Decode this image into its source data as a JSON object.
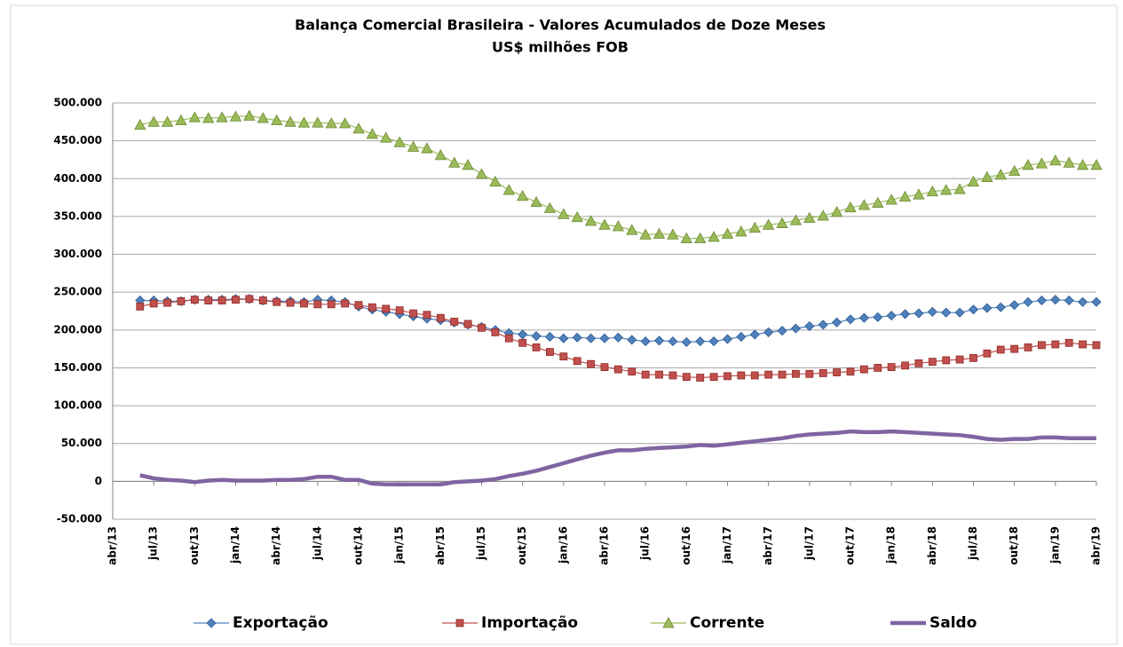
{
  "chart_data": {
    "type": "line",
    "title": "Balança Comercial Brasileira -  Valores Acumulados de Doze Meses",
    "subtitle": "US$ milhões FOB",
    "categories": [
      "abr/13",
      null,
      null,
      "jul/13",
      null,
      null,
      "out/13",
      null,
      null,
      "jan/14",
      null,
      null,
      "abr/14",
      null,
      null,
      "jul/14",
      null,
      null,
      "out/14",
      null,
      null,
      "jan/15",
      null,
      null,
      "abr/15",
      null,
      null,
      "jul/15",
      null,
      null,
      "out/15",
      null,
      null,
      "jan/16",
      null,
      null,
      "abr/16",
      null,
      null,
      "jul/16",
      null,
      null,
      "out/16",
      null,
      null,
      "jan/17",
      null,
      null,
      "abr/17",
      null,
      null,
      "jul/17",
      null,
      null,
      "out/17",
      null,
      null,
      "jan/18",
      null,
      null,
      "abr/18",
      null,
      null,
      "jul/18",
      null,
      null,
      "out/18",
      null,
      null,
      "jan/19",
      null,
      null,
      "abr/19"
    ],
    "series": [
      {
        "name": "Exportação",
        "color": "#4f81bd",
        "marker": "diamond",
        "values": [
          null,
          null,
          239000,
          239000,
          238000,
          238000,
          240000,
          240000,
          240000,
          241000,
          241000,
          239000,
          238000,
          238000,
          237000,
          240000,
          239000,
          237000,
          231000,
          227000,
          224000,
          221000,
          218000,
          215000,
          213000,
          210000,
          207000,
          204000,
          200000,
          196000,
          194000,
          192000,
          191000,
          189000,
          190000,
          189000,
          189000,
          190000,
          187000,
          185000,
          186000,
          185000,
          184000,
          185000,
          185000,
          188000,
          191000,
          194000,
          197000,
          199000,
          202000,
          205000,
          207000,
          210000,
          214000,
          216000,
          217000,
          219000,
          221000,
          222000,
          224000,
          223000,
          223000,
          227000,
          229000,
          230000,
          233000,
          237000,
          239000,
          240000,
          239000,
          237000,
          237000
        ]
      },
      {
        "name": "Importação",
        "color": "#c0504d",
        "marker": "square",
        "values": [
          null,
          null,
          231000,
          235000,
          236000,
          238000,
          240000,
          239000,
          239000,
          240000,
          241000,
          239000,
          237000,
          236000,
          235000,
          234000,
          234000,
          235000,
          233000,
          230000,
          228000,
          226000,
          222000,
          220000,
          216000,
          211000,
          208000,
          203000,
          197000,
          189000,
          183000,
          177000,
          171000,
          165000,
          159000,
          155000,
          151000,
          148000,
          145000,
          141000,
          141000,
          140000,
          138000,
          137000,
          138000,
          139000,
          140000,
          140000,
          141000,
          141000,
          142000,
          142000,
          143000,
          144000,
          145000,
          148000,
          150000,
          151000,
          153000,
          156000,
          158000,
          160000,
          161000,
          163000,
          169000,
          174000,
          175000,
          177000,
          180000,
          181000,
          183000,
          181000,
          180000
        ]
      },
      {
        "name": "Corrente",
        "color": "#9bbb59",
        "marker": "triangle",
        "values": [
          null,
          null,
          471000,
          475000,
          475000,
          477000,
          481000,
          480000,
          481000,
          482000,
          483000,
          480000,
          477000,
          475000,
          474000,
          474000,
          473000,
          473000,
          466000,
          459000,
          454000,
          448000,
          442000,
          440000,
          431000,
          421000,
          418000,
          406000,
          396000,
          385000,
          377000,
          369000,
          361000,
          353000,
          349000,
          344000,
          339000,
          337000,
          332000,
          326000,
          327000,
          326000,
          321000,
          321000,
          323000,
          327000,
          330000,
          335000,
          339000,
          341000,
          345000,
          348000,
          351000,
          356000,
          362000,
          365000,
          368000,
          372000,
          376000,
          379000,
          383000,
          385000,
          386000,
          396000,
          402000,
          405000,
          410000,
          418000,
          420000,
          424000,
          421000,
          418000,
          418000
        ]
      },
      {
        "name": "Saldo",
        "color": "#8064a2",
        "marker": null,
        "values": [
          null,
          null,
          8000,
          4000,
          2000,
          1000,
          -1000,
          1000,
          2000,
          1000,
          1000,
          1000,
          2000,
          2000,
          3000,
          6000,
          6000,
          2000,
          2000,
          -3000,
          -4000,
          -4000,
          -4000,
          -4000,
          -4000,
          -1000,
          0,
          1000,
          3000,
          7000,
          10000,
          14000,
          19000,
          24000,
          29000,
          34000,
          38000,
          41000,
          41000,
          43000,
          44000,
          45000,
          46000,
          48000,
          47000,
          49000,
          51000,
          53000,
          55000,
          57000,
          60000,
          62000,
          63000,
          64000,
          66000,
          65000,
          65000,
          66000,
          65000,
          64000,
          63000,
          62000,
          61000,
          59000,
          56000,
          55000,
          56000,
          56000,
          58000,
          58000,
          57000,
          57000,
          57000
        ]
      }
    ],
    "ylim": [
      -50000,
      500000
    ],
    "yticks": [
      {
        "value": -50000,
        "label": "-50.000"
      },
      0,
      {
        "value": 50000,
        "label": "50.000"
      },
      {
        "value": 100000,
        "label": "100.000"
      },
      {
        "value": 150000,
        "label": "150.000"
      },
      {
        "value": 200000,
        "label": "200.000"
      },
      {
        "value": 250000,
        "label": "250.000"
      },
      {
        "value": 300000,
        "label": "300.000"
      },
      {
        "value": 350000,
        "label": "350.000"
      },
      {
        "value": 400000,
        "label": "400.000"
      },
      {
        "value": 450000,
        "label": "450.000"
      },
      {
        "value": 500000,
        "label": "500.000"
      }
    ],
    "grid": true,
    "legend": "bottom"
  }
}
